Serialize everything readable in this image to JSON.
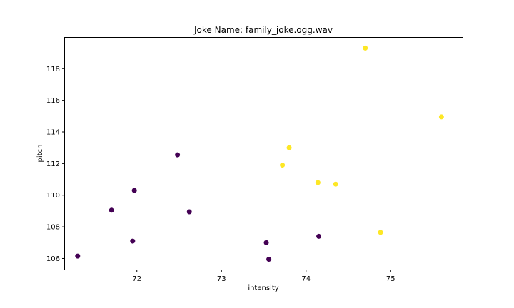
{
  "chart_data": {
    "type": "scatter",
    "title": "Joke Name: family_joke.ogg.wav",
    "xlabel": "intensity",
    "ylabel": "pitch",
    "xlim": [
      71.15,
      75.85
    ],
    "ylim": [
      105.3,
      119.95
    ],
    "xticks": [
      72,
      73,
      74,
      75
    ],
    "yticks": [
      106,
      108,
      110,
      112,
      114,
      116,
      118
    ],
    "grid": false,
    "legend": "none",
    "colors": {
      "purple": "#440154",
      "yellow": "#fde725"
    },
    "points": [
      {
        "x": 71.3,
        "y": 106.15,
        "color": "purple"
      },
      {
        "x": 71.7,
        "y": 109.05,
        "color": "purple"
      },
      {
        "x": 71.95,
        "y": 107.1,
        "color": "purple"
      },
      {
        "x": 71.97,
        "y": 110.3,
        "color": "purple"
      },
      {
        "x": 72.48,
        "y": 112.55,
        "color": "purple"
      },
      {
        "x": 72.62,
        "y": 108.95,
        "color": "purple"
      },
      {
        "x": 73.53,
        "y": 107.0,
        "color": "purple"
      },
      {
        "x": 73.56,
        "y": 105.95,
        "color": "purple"
      },
      {
        "x": 74.15,
        "y": 107.4,
        "color": "purple"
      },
      {
        "x": 73.72,
        "y": 111.9,
        "color": "yellow"
      },
      {
        "x": 73.8,
        "y": 113.0,
        "color": "yellow"
      },
      {
        "x": 74.14,
        "y": 110.8,
        "color": "yellow"
      },
      {
        "x": 74.35,
        "y": 110.7,
        "color": "yellow"
      },
      {
        "x": 74.7,
        "y": 119.3,
        "color": "yellow"
      },
      {
        "x": 74.88,
        "y": 107.65,
        "color": "yellow"
      },
      {
        "x": 75.6,
        "y": 114.95,
        "color": "yellow"
      }
    ]
  }
}
